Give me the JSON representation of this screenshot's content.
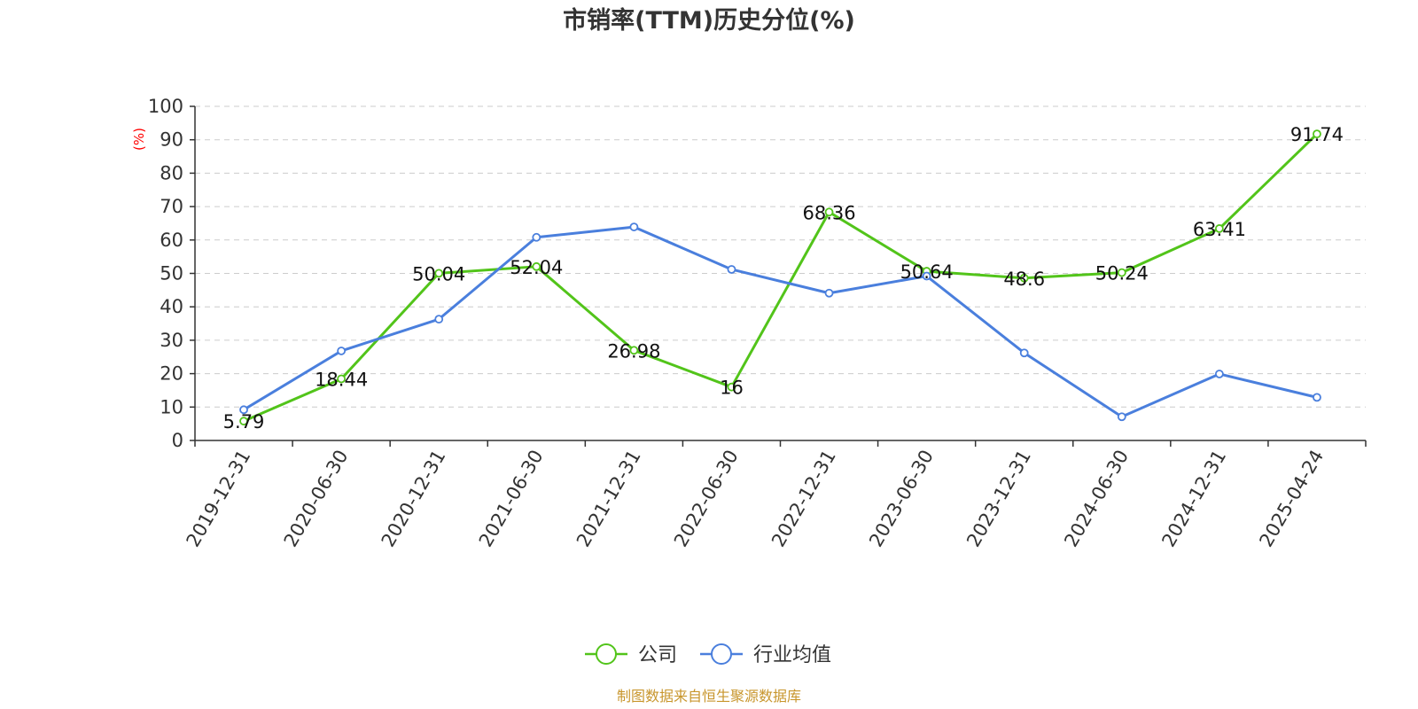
{
  "chart_data": {
    "type": "line",
    "title": "市销率(TTM)历史分位(%)",
    "ylabel": "(%)",
    "ylim": [
      0,
      100
    ],
    "yticks": [
      0,
      10,
      20,
      30,
      40,
      50,
      60,
      70,
      80,
      90,
      100
    ],
    "grid": true,
    "legend_position": "bottom-center",
    "categories": [
      "2019-12-31",
      "2020-06-30",
      "2020-12-31",
      "2021-06-30",
      "2021-12-31",
      "2022-06-30",
      "2022-12-31",
      "2023-06-30",
      "2023-12-31",
      "2024-06-30",
      "2024-12-31",
      "2025-04-24"
    ],
    "series": [
      {
        "name": "公司",
        "color": "#52c41a",
        "values": [
          5.79,
          18.44,
          50.04,
          52.04,
          26.98,
          16,
          68.36,
          50.64,
          48.6,
          50.24,
          63.41,
          91.74
        ],
        "labels": [
          "5.79",
          "18.44",
          "50.04",
          "52.04",
          "26.98",
          "16",
          "68.36",
          "50.64",
          "48.6",
          "50.24",
          "63.41",
          "91.74"
        ]
      },
      {
        "name": "行业均值",
        "color": "#4a7fdd",
        "values": [
          9.2,
          26.8,
          36.3,
          60.8,
          63.9,
          51.2,
          44.1,
          49.2,
          26.2,
          7.1,
          19.9,
          12.9
        ]
      }
    ]
  },
  "source": "制图数据来自恒生聚源数据库",
  "colors": {
    "axis": "#333333",
    "grid": "#cccccc",
    "ylabel": "#ff0000",
    "source": "#c8962d"
  }
}
